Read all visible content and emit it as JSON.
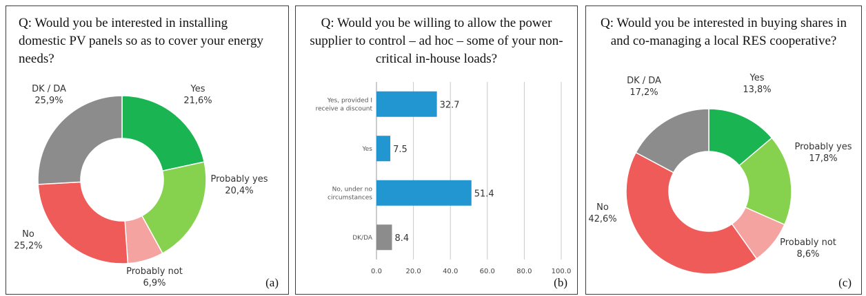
{
  "chart_data": [
    {
      "type": "pie",
      "title": "Q: Would you be interested in installing domestic PV panels so as to cover your energy needs?",
      "panel_label": "(a)",
      "slices": [
        {
          "label": "Yes",
          "value_text": "21,6%",
          "value": 21.6,
          "color": "#1ab552"
        },
        {
          "label": "Probably yes",
          "value_text": "20,4%",
          "value": 20.4,
          "color": "#86d24f"
        },
        {
          "label": "Probably not",
          "value_text": "6,9%",
          "value": 6.9,
          "color": "#f5a3a1"
        },
        {
          "label": "No",
          "value_text": "25,2%",
          "value": 25.2,
          "color": "#ee5b59"
        },
        {
          "label": "DK / DA",
          "value_text": "25,9%",
          "value": 25.9,
          "color": "#8c8c8c"
        }
      ]
    },
    {
      "type": "bar",
      "orientation": "horizontal",
      "title": "Q: Would you be willing to allow the power supplier to control – ad hoc – some of your non-critical in-house loads?",
      "panel_label": "(b)",
      "categories": [
        [
          "Yes, provided  I",
          "receive  a discount"
        ],
        [
          "Yes"
        ],
        [
          "No, under no",
          "circumstances"
        ],
        [
          "DK/DA"
        ]
      ],
      "values": [
        32.7,
        7.5,
        51.4,
        8.4
      ],
      "value_labels": [
        "32.7",
        "7.5",
        "51.4",
        "8.4"
      ],
      "colors": [
        "#2196d1",
        "#2196d1",
        "#2196d1",
        "#8c8c8c"
      ],
      "xlim": [
        0,
        100
      ],
      "xticks": [
        "0.0",
        "20.0",
        "40.0",
        "60.0",
        "80.0",
        "100.0"
      ],
      "grid": true
    },
    {
      "type": "pie",
      "title": "Q: Would you be interested in buying shares in and co-managing a local RES cooperative?",
      "panel_label": "(c)",
      "slices": [
        {
          "label": "Yes",
          "value_text": "13,8%",
          "value": 13.8,
          "color": "#1ab552"
        },
        {
          "label": "Probably yes",
          "value_text": "17,8%",
          "value": 17.8,
          "color": "#86d24f"
        },
        {
          "label": "Probably not",
          "value_text": "8,6%",
          "value": 8.6,
          "color": "#f5a3a1"
        },
        {
          "label": "No",
          "value_text": "42,6%",
          "value": 42.6,
          "color": "#ee5b59"
        },
        {
          "label": "DK / DA",
          "value_text": "17,2%",
          "value": 17.2,
          "color": "#8c8c8c"
        }
      ]
    }
  ]
}
